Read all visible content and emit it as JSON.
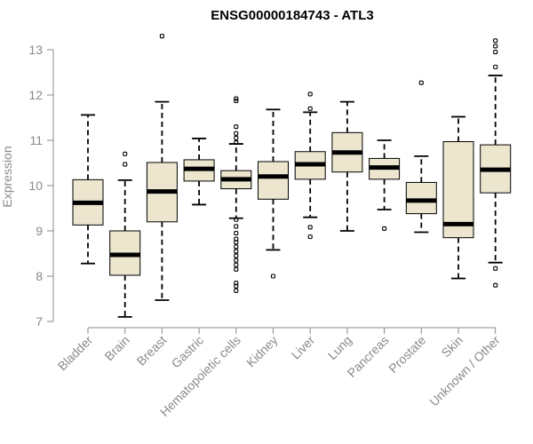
{
  "chart_data": {
    "type": "boxplot",
    "title": "ENSG00000184743 - ATL3",
    "xlabel": "",
    "ylabel": "Expression",
    "ylim": [
      7,
      13
    ],
    "yticks": [
      7,
      8,
      9,
      10,
      11,
      12,
      13
    ],
    "grid": false,
    "colors": {
      "box_fill": "#ece6cf",
      "stroke": "#000000",
      "axis": "#8a8a8a"
    },
    "categories": [
      "Bladder",
      "Brain",
      "Breast",
      "Gastric",
      "Hematopoietic cells",
      "Kidney",
      "Liver",
      "Lung",
      "Pancreas",
      "Prostate",
      "Skin",
      "Unknown / Other"
    ],
    "boxes": [
      {
        "label": "Bladder",
        "whisker_low": 8.28,
        "q1": 9.13,
        "median": 9.62,
        "q3": 10.13,
        "whisker_high": 11.56,
        "outliers": []
      },
      {
        "label": "Brain",
        "whisker_low": 7.1,
        "q1": 8.02,
        "median": 8.47,
        "q3": 9.0,
        "whisker_high": 10.12,
        "outliers": [
          10.47,
          10.7
        ]
      },
      {
        "label": "Breast",
        "whisker_low": 7.47,
        "q1": 9.2,
        "median": 9.87,
        "q3": 10.51,
        "whisker_high": 11.85,
        "outliers": [
          13.3
        ]
      },
      {
        "label": "Gastric",
        "whisker_low": 9.58,
        "q1": 10.1,
        "median": 10.37,
        "q3": 10.57,
        "whisker_high": 11.04,
        "outliers": []
      },
      {
        "label": "Hematopoietic cells",
        "whisker_low": 9.28,
        "q1": 9.93,
        "median": 10.14,
        "q3": 10.33,
        "whisker_high": 10.92,
        "outliers": [
          11.92,
          11.87,
          11.3,
          11.15,
          11.05,
          10.95,
          9.25,
          9.1,
          8.95,
          8.82,
          8.75,
          8.65,
          8.55,
          8.45,
          8.35,
          8.25,
          8.15,
          7.85,
          7.78,
          7.68
        ]
      },
      {
        "label": "Kidney",
        "whisker_low": 8.58,
        "q1": 9.7,
        "median": 10.2,
        "q3": 10.53,
        "whisker_high": 11.68,
        "outliers": [
          8.0
        ]
      },
      {
        "label": "Liver",
        "whisker_low": 9.3,
        "q1": 10.14,
        "median": 10.47,
        "q3": 10.75,
        "whisker_high": 11.62,
        "outliers": [
          12.02,
          11.7,
          9.08,
          8.87
        ]
      },
      {
        "label": "Lung",
        "whisker_low": 9.0,
        "q1": 10.3,
        "median": 10.73,
        "q3": 11.17,
        "whisker_high": 11.85,
        "outliers": []
      },
      {
        "label": "Pancreas",
        "whisker_low": 9.47,
        "q1": 10.14,
        "median": 10.4,
        "q3": 10.6,
        "whisker_high": 11.0,
        "outliers": [
          9.05
        ]
      },
      {
        "label": "Prostate",
        "whisker_low": 8.97,
        "q1": 9.38,
        "median": 9.67,
        "q3": 10.07,
        "whisker_high": 10.65,
        "outliers": [
          12.27
        ]
      },
      {
        "label": "Skin",
        "whisker_low": 7.95,
        "q1": 8.85,
        "median": 9.15,
        "q3": 10.97,
        "whisker_high": 11.52,
        "outliers": []
      },
      {
        "label": "Unknown / Other",
        "whisker_low": 8.3,
        "q1": 9.84,
        "median": 10.35,
        "q3": 10.9,
        "whisker_high": 12.43,
        "outliers": [
          13.2,
          13.08,
          12.95,
          12.62,
          8.17,
          7.8
        ]
      }
    ]
  }
}
